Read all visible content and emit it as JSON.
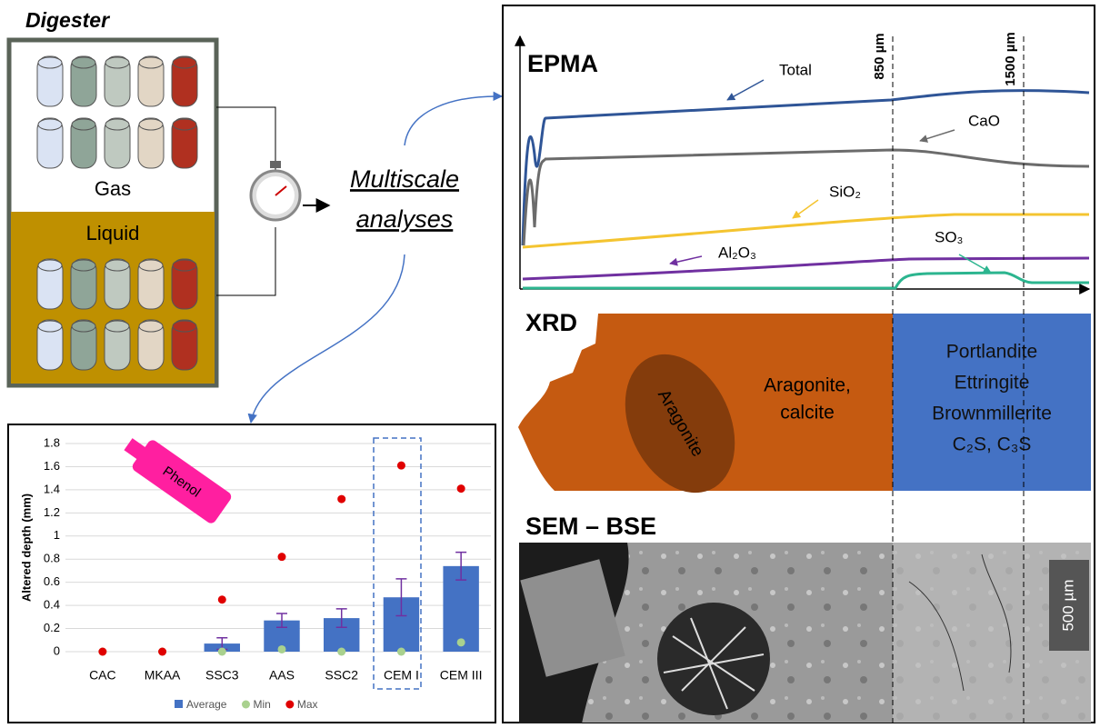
{
  "digester": {
    "title": "Digester",
    "gas": "Gas",
    "liquid": "Liquid"
  },
  "analyses": {
    "line1": "Multiscale",
    "line2": "analyses"
  },
  "epma": {
    "title": "EPMA",
    "total": "Total",
    "cao": "CaO",
    "sio2": "SiO₂",
    "al2o3": "Al₂O₃",
    "so3": "SO₃",
    "mark1": "850 µm",
    "mark2": "1500 µm"
  },
  "xrd": {
    "title": "XRD",
    "ellipse": "Aragonite",
    "left": "Aragonite,",
    "left2": "calcite",
    "right": [
      "Portlandite",
      "Ettringite",
      "Brownmillerite",
      "C₂S, C₃S"
    ]
  },
  "sem": {
    "title": "SEM – BSE",
    "scale": "500 µm"
  },
  "chart_data": {
    "type": "bar",
    "annotation": "Phenol",
    "y_label": "Altered depth (mm)",
    "categories": [
      "CAC",
      "MKAA",
      "SSC3",
      "AAS",
      "SSC2",
      "CEM I",
      "CEM III"
    ],
    "series": [
      {
        "name": "Average",
        "color": "#4472c4",
        "values": [
          0,
          0,
          0.07,
          0.27,
          0.29,
          0.47,
          0.74
        ],
        "errors": [
          null,
          null,
          0.05,
          0.06,
          0.08,
          0.16,
          0.12
        ]
      },
      {
        "name": "Min",
        "color": "#a9d18e",
        "values": [
          0,
          0,
          0,
          0.02,
          0,
          0,
          0.08
        ]
      },
      {
        "name": "Max",
        "color": "#e00000",
        "values": [
          0,
          0,
          0.45,
          0.82,
          1.32,
          1.61,
          1.41
        ]
      }
    ],
    "ylim": [
      0,
      1.8
    ],
    "yticks": [
      0,
      0.2,
      0.4,
      0.6,
      0.8,
      1,
      1.2,
      1.4,
      1.6,
      1.8
    ],
    "grid": true,
    "legend": "bottom"
  }
}
